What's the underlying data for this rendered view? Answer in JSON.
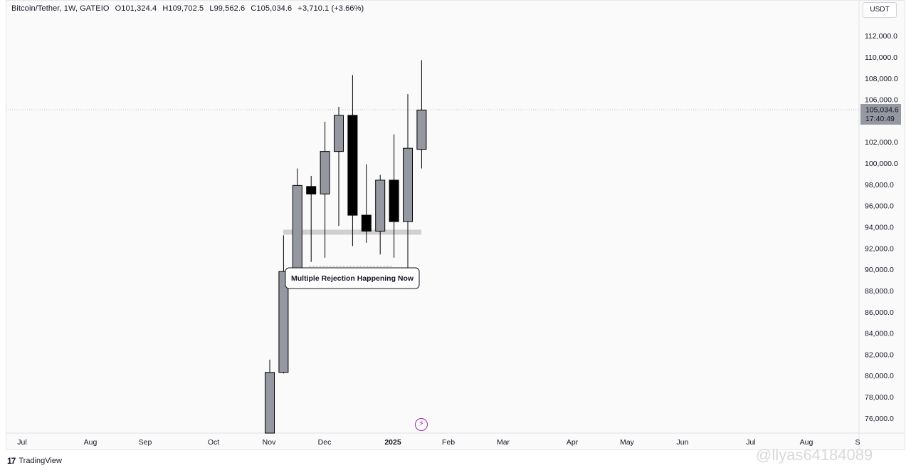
{
  "legend": {
    "symbol": "Bitcoin/Tether, 1W, GATEIO",
    "open": "O101,324.4",
    "high": "H109,702.5",
    "low": "L99,562.6",
    "close": "C105,034.6",
    "change": "+3,710.1 (+3.66%)"
  },
  "unit": "USDT",
  "footer": {
    "brand": "TradingView",
    "watermark": "@llyas64184089"
  },
  "colors": {
    "up": "#9598a1",
    "down": "#000000",
    "background": "#fafafa",
    "grid_text": "#131722"
  },
  "icons": {
    "bolt": "lightning-bolt-icon",
    "logo": "tradingview-logo-icon"
  },
  "chart_data": {
    "type": "candlestick",
    "ylim": [
      74500,
      114000
    ],
    "y_ticks": [
      "112,000.0",
      "110,000.0",
      "108,000.0",
      "106,000.0",
      "102,000.0",
      "100,000.0",
      "98,000.0",
      "96,000.0",
      "94,000.0",
      "92,000.0",
      "90,000.0",
      "88,000.0",
      "86,000.0",
      "84,000.0",
      "82,000.0",
      "80,000.0",
      "78,000.0",
      "76,000.0"
    ],
    "x_ticks": [
      "Jul",
      "Aug",
      "Sep",
      "Oct",
      "Nov",
      "Dec",
      "2025",
      "Feb",
      "Mar",
      "Apr",
      "May",
      "Jun",
      "Jul",
      "Aug",
      "S"
    ],
    "last_price": {
      "value": 105034.6,
      "label": "105,034.6",
      "countdown": "17:40:49"
    },
    "annotation": {
      "text": "Multiple Rejection Happening Now",
      "support_level": 93500
    },
    "candles": [
      {
        "o": 74500,
        "h": 81500,
        "l": 74500,
        "c": 80300
      },
      {
        "o": 80300,
        "h": 93200,
        "l": 80200,
        "c": 89800
      },
      {
        "o": 90000,
        "h": 99500,
        "l": 89900,
        "c": 97900
      },
      {
        "o": 97800,
        "h": 98800,
        "l": 90700,
        "c": 97100
      },
      {
        "o": 97100,
        "h": 103900,
        "l": 91100,
        "c": 101100
      },
      {
        "o": 101100,
        "h": 105300,
        "l": 94100,
        "c": 104500
      },
      {
        "o": 104500,
        "h": 108300,
        "l": 92200,
        "c": 95100
      },
      {
        "o": 95100,
        "h": 99900,
        "l": 92500,
        "c": 93600
      },
      {
        "o": 93600,
        "h": 98900,
        "l": 91400,
        "c": 98400
      },
      {
        "o": 98400,
        "h": 102700,
        "l": 91100,
        "c": 94500
      },
      {
        "o": 94500,
        "h": 106500,
        "l": 89800,
        "c": 101400
      },
      {
        "o": 101300,
        "h": 109700,
        "l": 99500,
        "c": 105000
      }
    ]
  }
}
